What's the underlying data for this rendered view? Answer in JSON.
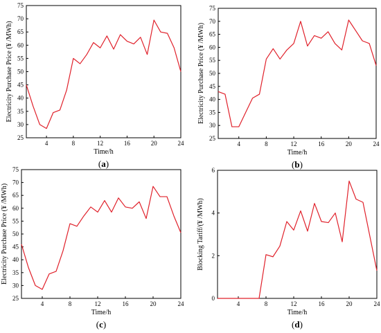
{
  "colors": {
    "line": "#e0202a",
    "axis": "#000000"
  },
  "chart_data": [
    {
      "type": "line",
      "panel_label": "(a)",
      "xlabel": "Time/h",
      "ylabel": "Electricity Purchase Price (¥ /MWh)",
      "xlim": [
        1,
        24
      ],
      "ylim": [
        25,
        75
      ],
      "xticks": [
        4,
        8,
        12,
        16,
        20,
        24
      ],
      "yticks": [
        25,
        30,
        35,
        40,
        45,
        50,
        55,
        60,
        65,
        70,
        75
      ],
      "x": [
        1,
        2,
        3,
        4,
        5,
        6,
        7,
        8,
        9,
        10,
        11,
        12,
        13,
        14,
        15,
        16,
        17,
        18,
        19,
        20,
        21,
        22,
        23,
        24
      ],
      "series": [
        {
          "values": [
            45,
            37,
            30,
            28.5,
            34.5,
            35.5,
            43,
            55,
            53,
            56.5,
            61,
            59,
            63.5,
            58.5,
            64,
            61.5,
            60.5,
            63,
            56.5,
            69.5,
            65,
            64.5,
            59,
            50
          ]
        }
      ]
    },
    {
      "type": "line",
      "panel_label": "(b)",
      "xlabel": "Time/h",
      "ylabel": "Electricity Purchase Price (¥ /MWh)",
      "xlim": [
        1,
        24
      ],
      "ylim": [
        25,
        75
      ],
      "xticks": [
        4,
        8,
        12,
        16,
        20,
        24
      ],
      "yticks": [
        25,
        30,
        35,
        40,
        45,
        50,
        55,
        60,
        65,
        70,
        75
      ],
      "x": [
        1,
        2,
        3,
        4,
        5,
        6,
        7,
        8,
        9,
        10,
        11,
        12,
        13,
        14,
        15,
        16,
        17,
        18,
        19,
        20,
        21,
        22,
        23,
        24
      ],
      "series": [
        {
          "values": [
            43,
            42,
            29.5,
            29.5,
            35,
            40.5,
            42,
            55.5,
            59.5,
            55.5,
            59,
            61.5,
            70,
            60.5,
            64.5,
            63.5,
            66,
            61.5,
            59,
            70.5,
            66.5,
            62.5,
            61.5,
            53
          ]
        }
      ]
    },
    {
      "type": "line",
      "panel_label": "(c)",
      "xlabel": "Time/h",
      "ylabel": "Electricity Purchase Price (¥ /MWh)",
      "xlim": [
        1,
        24
      ],
      "ylim": [
        25,
        75
      ],
      "xticks": [
        4,
        8,
        12,
        16,
        20,
        24
      ],
      "yticks": [
        25,
        30,
        35,
        40,
        45,
        50,
        55,
        60,
        65,
        70,
        75
      ],
      "x": [
        1,
        2,
        3,
        4,
        5,
        6,
        7,
        8,
        9,
        10,
        11,
        12,
        13,
        14,
        15,
        16,
        17,
        18,
        19,
        20,
        21,
        22,
        23,
        24
      ],
      "series": [
        {
          "values": [
            46,
            37,
            30,
            28.5,
            34.5,
            35.5,
            43.5,
            54,
            53,
            57,
            60.5,
            58.5,
            63,
            58.5,
            64,
            60.5,
            60,
            62.5,
            56,
            68.5,
            64.5,
            64.5,
            57,
            50.5
          ]
        }
      ]
    },
    {
      "type": "line",
      "panel_label": "(d)",
      "xlabel": "Time/h",
      "ylabel": "Blocking Tariff/(¥ /MWh)",
      "xlim": [
        1,
        24
      ],
      "ylim": [
        0,
        6
      ],
      "xticks": [
        4,
        8,
        12,
        16,
        20,
        24
      ],
      "yticks": [
        0,
        2,
        4,
        6
      ],
      "x": [
        1,
        2,
        3,
        4,
        5,
        6,
        7,
        8,
        9,
        10,
        11,
        12,
        13,
        14,
        15,
        16,
        17,
        18,
        19,
        20,
        21,
        22,
        23,
        24
      ],
      "series": [
        {
          "values": [
            0,
            0,
            0,
            0,
            0,
            0,
            0,
            2.05,
            1.95,
            2.45,
            3.6,
            3.2,
            4.1,
            3.15,
            4.45,
            3.6,
            3.55,
            4.0,
            2.65,
            5.5,
            4.65,
            4.5,
            2.9,
            1.3
          ]
        }
      ]
    }
  ]
}
